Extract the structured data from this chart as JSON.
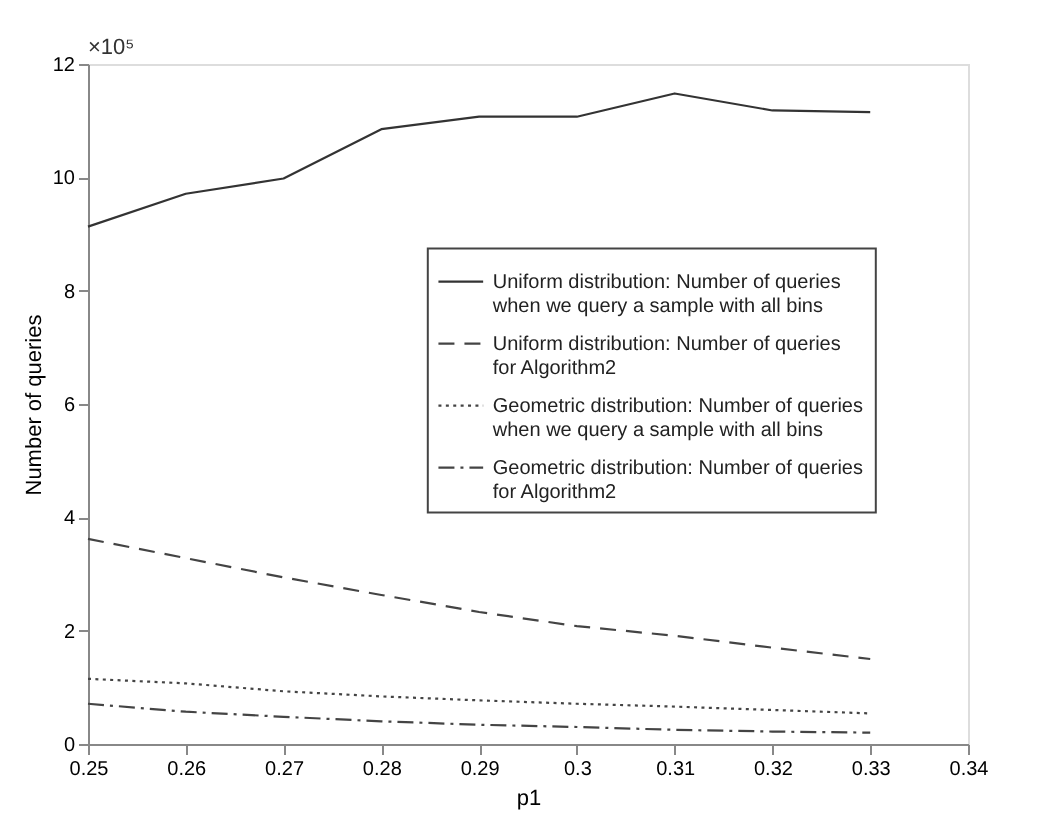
{
  "chart_data": {
    "type": "line",
    "xlabel": "p1",
    "ylabel": "Number of queries",
    "annotations": [
      "×10⁵"
    ],
    "x": [
      0.25,
      0.26,
      0.27,
      0.28,
      0.29,
      0.3,
      0.31,
      0.32,
      0.33
    ],
    "series": [
      {
        "name": "Uniform distribution: Number of queries when we query a sample with all bins",
        "color": "#333333",
        "line_style": "solid",
        "values": [
          9.13,
          9.71,
          9.98,
          10.85,
          11.07,
          11.07,
          11.48,
          11.18,
          11.15
        ]
      },
      {
        "name": "Uniform distribution: Number of queries for Algorithm2",
        "color": "#444444",
        "line_style": "dashed",
        "values": [
          3.62,
          3.28,
          2.94,
          2.63,
          2.33,
          2.08,
          1.91,
          1.7,
          1.5
        ]
      },
      {
        "name": "Geometric distribution: Number of queries when we query a sample with all bins",
        "color": "#444444",
        "line_style": "dotted",
        "values": [
          1.15,
          1.07,
          0.93,
          0.84,
          0.77,
          0.71,
          0.66,
          0.6,
          0.54
        ]
      },
      {
        "name": "Geometric distribution: Number of queries for Algorithm2",
        "color": "#444444",
        "line_style": "dashdot",
        "values": [
          0.71,
          0.57,
          0.48,
          0.4,
          0.34,
          0.3,
          0.25,
          0.22,
          0.2
        ]
      }
    ],
    "xlim": [
      0.25,
      0.34
    ],
    "xticks": [
      0.25,
      0.26,
      0.27,
      0.28,
      0.29,
      0.3,
      0.31,
      0.32,
      0.33,
      0.34
    ],
    "ylim": [
      0,
      12
    ],
    "yticks": [
      0,
      2,
      4,
      6,
      8,
      10,
      12
    ],
    "grid": false,
    "legend": "right",
    "marker": "none"
  }
}
